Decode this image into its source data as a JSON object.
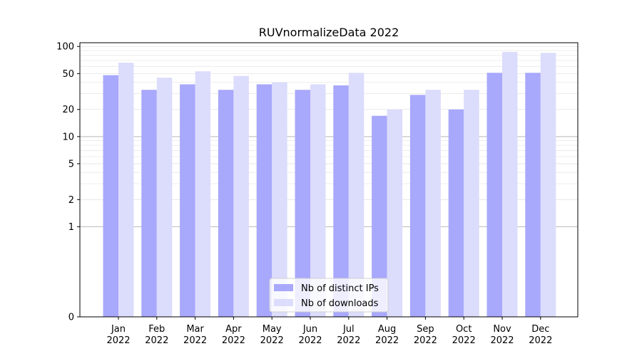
{
  "chart_data": {
    "type": "bar",
    "title": "RUVnormalizeData 2022",
    "xlabel": "",
    "ylabel": "",
    "y_scale": "symlog",
    "ylim": [
      0,
      110
    ],
    "y_ticks": [
      0,
      1,
      2,
      5,
      10,
      20,
      50,
      100
    ],
    "categories": [
      [
        "Jan",
        "2022"
      ],
      [
        "Feb",
        "2022"
      ],
      [
        "Mar",
        "2022"
      ],
      [
        "Apr",
        "2022"
      ],
      [
        "May",
        "2022"
      ],
      [
        "Jun",
        "2022"
      ],
      [
        "Jul",
        "2022"
      ],
      [
        "Aug",
        "2022"
      ],
      [
        "Sep",
        "2022"
      ],
      [
        "Oct",
        "2022"
      ],
      [
        "Nov",
        "2022"
      ],
      [
        "Dec",
        "2022"
      ]
    ],
    "series": [
      {
        "name": "Nb of distinct IPs",
        "color": "#a8a8fc",
        "values": [
          48,
          33,
          38,
          33,
          38,
          33,
          37,
          17,
          29,
          20,
          51,
          51
        ]
      },
      {
        "name": "Nb of downloads",
        "color": "#dcdcfc",
        "values": [
          66,
          45,
          53,
          47,
          40,
          38,
          51,
          20,
          33,
          33,
          87,
          85
        ]
      }
    ],
    "legend_position": "lower-center",
    "grid": true
  }
}
